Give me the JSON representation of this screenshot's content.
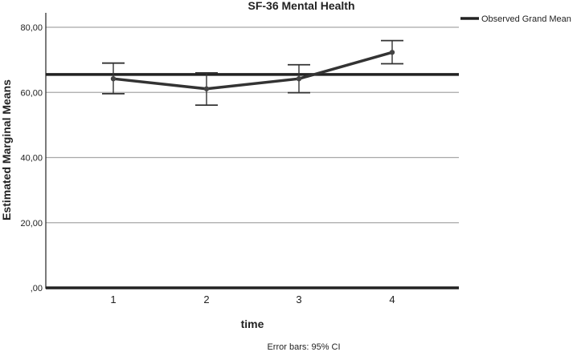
{
  "chart_data": {
    "type": "line",
    "title": "SF-36 Mental Health",
    "xlabel": "time",
    "ylabel": "Estimated Marginal Means",
    "categories": [
      "1",
      "2",
      "3",
      "4"
    ],
    "series": [
      {
        "name": "Estimated Marginal Means",
        "values": [
          64.2,
          61.1,
          64.2,
          72.3
        ],
        "ci_low": [
          59.6,
          56.1,
          59.9,
          68.8
        ],
        "ci_high": [
          69.0,
          66.0,
          68.5,
          75.9
        ]
      }
    ],
    "reference_line": {
      "name": "Observed Grand Mean",
      "value": 65.5
    },
    "ylim": [
      0,
      80
    ],
    "yticks": [
      0,
      20,
      40,
      60,
      80
    ],
    "ytick_labels": [
      ",00",
      "20,00",
      "40,00",
      "60,00",
      "80,00"
    ],
    "grid": true,
    "legend": {
      "position": "top-right",
      "entries": [
        "Observed Grand Mean"
      ]
    },
    "footnote": "Error bars: 95% CI"
  }
}
